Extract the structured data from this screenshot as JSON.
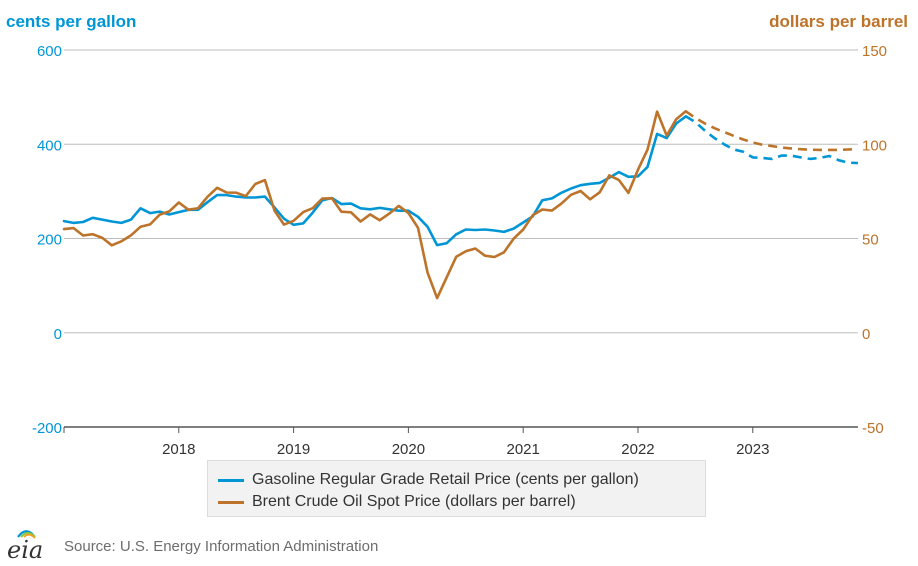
{
  "source_text": "Source: U.S. Energy Information Administration",
  "logo_text": "eia",
  "colors": {
    "gasoline": "#0096d6",
    "brent": "#bd732a",
    "grid": "#bdbdbd"
  },
  "chart_data": {
    "type": "line",
    "left_axis_label": "cents per gallon",
    "right_axis_label": "dollars per barrel",
    "left_ylim": [
      -200,
      600
    ],
    "right_ylim": [
      -50,
      150
    ],
    "left_ticks": [
      "-200",
      "0",
      "200",
      "400",
      "600"
    ],
    "right_ticks": [
      "-50",
      "0",
      "50",
      "100",
      "150"
    ],
    "x_range": [
      "2017-01",
      "2023-12"
    ],
    "x_ticks": [
      "2018",
      "2019",
      "2020",
      "2021",
      "2022",
      "2023"
    ],
    "grid": true,
    "legend_position": "bottom",
    "series": [
      {
        "name": "Gasoline Regular Grade Retail Price (cents per gallon)",
        "axis": "left",
        "color": "#0096d6",
        "historical": [
          [
            "2017-01",
            237
          ],
          [
            "2017-02",
            233
          ],
          [
            "2017-03",
            235
          ],
          [
            "2017-04",
            244
          ],
          [
            "2017-05",
            240
          ],
          [
            "2017-06",
            236
          ],
          [
            "2017-07",
            233
          ],
          [
            "2017-08",
            240
          ],
          [
            "2017-09",
            264
          ],
          [
            "2017-10",
            254
          ],
          [
            "2017-11",
            257
          ],
          [
            "2017-12",
            251
          ],
          [
            "2018-01",
            256
          ],
          [
            "2018-02",
            261
          ],
          [
            "2018-03",
            261
          ],
          [
            "2018-04",
            277
          ],
          [
            "2018-05",
            292
          ],
          [
            "2018-06",
            292
          ],
          [
            "2018-07",
            289
          ],
          [
            "2018-08",
            287
          ],
          [
            "2018-09",
            287
          ],
          [
            "2018-10",
            289
          ],
          [
            "2018-11",
            266
          ],
          [
            "2018-12",
            242
          ],
          [
            "2019-01",
            229
          ],
          [
            "2019-02",
            232
          ],
          [
            "2019-03",
            255
          ],
          [
            "2019-04",
            281
          ],
          [
            "2019-05",
            286
          ],
          [
            "2019-06",
            273
          ],
          [
            "2019-07",
            274
          ],
          [
            "2019-08",
            264
          ],
          [
            "2019-09",
            262
          ],
          [
            "2019-10",
            265
          ],
          [
            "2019-11",
            262
          ],
          [
            "2019-12",
            259
          ],
          [
            "2020-01",
            259
          ],
          [
            "2020-02",
            246
          ],
          [
            "2020-03",
            225
          ],
          [
            "2020-04",
            186
          ],
          [
            "2020-05",
            190
          ],
          [
            "2020-06",
            209
          ],
          [
            "2020-07",
            219
          ],
          [
            "2020-08",
            218
          ],
          [
            "2020-09",
            219
          ],
          [
            "2020-10",
            217
          ],
          [
            "2020-11",
            214
          ],
          [
            "2020-12",
            221
          ],
          [
            "2021-01",
            234
          ],
          [
            "2021-02",
            247
          ],
          [
            "2021-03",
            281
          ],
          [
            "2021-04",
            285
          ],
          [
            "2021-05",
            297
          ],
          [
            "2021-06",
            306
          ],
          [
            "2021-07",
            313
          ],
          [
            "2021-08",
            316
          ],
          [
            "2021-09",
            318
          ],
          [
            "2021-10",
            329
          ],
          [
            "2021-11",
            341
          ],
          [
            "2021-12",
            331
          ],
          [
            "2022-01",
            332
          ],
          [
            "2022-02",
            352
          ],
          [
            "2022-03",
            422
          ],
          [
            "2022-04",
            413
          ],
          [
            "2022-05",
            444
          ],
          [
            "2022-06",
            459
          ]
        ],
        "forecast": [
          [
            "2022-06",
            459
          ],
          [
            "2022-07",
            447
          ],
          [
            "2022-08",
            429
          ],
          [
            "2022-09",
            413
          ],
          [
            "2022-10",
            400
          ],
          [
            "2022-11",
            389
          ],
          [
            "2022-12",
            384
          ],
          [
            "2023-01",
            372
          ],
          [
            "2023-02",
            371
          ],
          [
            "2023-03",
            369
          ],
          [
            "2023-04",
            376
          ],
          [
            "2023-05",
            376
          ],
          [
            "2023-06",
            372
          ],
          [
            "2023-07",
            369
          ],
          [
            "2023-08",
            371
          ],
          [
            "2023-09",
            375
          ],
          [
            "2023-10",
            366
          ],
          [
            "2023-11",
            361
          ],
          [
            "2023-12",
            360
          ]
        ]
      },
      {
        "name": "Brent Crude Oil Spot Price (dollars per barrel)",
        "axis": "right",
        "color": "#bd732a",
        "historical": [
          [
            "2017-01",
            55
          ],
          [
            "2017-02",
            55.5
          ],
          [
            "2017-03",
            51.6
          ],
          [
            "2017-04",
            52.3
          ],
          [
            "2017-05",
            50.3
          ],
          [
            "2017-06",
            46.4
          ],
          [
            "2017-07",
            48.5
          ],
          [
            "2017-08",
            51.7
          ],
          [
            "2017-09",
            56.2
          ],
          [
            "2017-10",
            57.5
          ],
          [
            "2017-11",
            62.7
          ],
          [
            "2017-12",
            64.4
          ],
          [
            "2018-01",
            69.1
          ],
          [
            "2018-02",
            65.3
          ],
          [
            "2018-03",
            66
          ],
          [
            "2018-04",
            72.1
          ],
          [
            "2018-05",
            76.9
          ],
          [
            "2018-06",
            74.4
          ],
          [
            "2018-07",
            74.3
          ],
          [
            "2018-08",
            72.5
          ],
          [
            "2018-09",
            78.9
          ],
          [
            "2018-10",
            81
          ],
          [
            "2018-11",
            64.8
          ],
          [
            "2018-12",
            57.4
          ],
          [
            "2019-01",
            59.4
          ],
          [
            "2019-02",
            64
          ],
          [
            "2019-03",
            66.1
          ],
          [
            "2019-04",
            71.2
          ],
          [
            "2019-05",
            71.3
          ],
          [
            "2019-06",
            64.2
          ],
          [
            "2019-07",
            63.9
          ],
          [
            "2019-08",
            59
          ],
          [
            "2019-09",
            62.8
          ],
          [
            "2019-10",
            59.7
          ],
          [
            "2019-11",
            63.2
          ],
          [
            "2019-12",
            67.3
          ],
          [
            "2020-01",
            63.6
          ],
          [
            "2020-02",
            55.7
          ],
          [
            "2020-03",
            32
          ],
          [
            "2020-04",
            18.4
          ],
          [
            "2020-05",
            29.4
          ],
          [
            "2020-06",
            40.3
          ],
          [
            "2020-07",
            43.2
          ],
          [
            "2020-08",
            44.7
          ],
          [
            "2020-09",
            40.9
          ],
          [
            "2020-10",
            40.2
          ],
          [
            "2020-11",
            42.7
          ],
          [
            "2020-12",
            49.9
          ],
          [
            "2021-01",
            54.8
          ],
          [
            "2021-02",
            62.3
          ],
          [
            "2021-03",
            65.4
          ],
          [
            "2021-04",
            64.8
          ],
          [
            "2021-05",
            68.5
          ],
          [
            "2021-06",
            73.2
          ],
          [
            "2021-07",
            75.2
          ],
          [
            "2021-08",
            70.8
          ],
          [
            "2021-09",
            74.5
          ],
          [
            "2021-10",
            83.5
          ],
          [
            "2021-11",
            81.1
          ],
          [
            "2021-12",
            74.2
          ],
          [
            "2022-01",
            86.5
          ],
          [
            "2022-02",
            97.1
          ],
          [
            "2022-03",
            117.3
          ],
          [
            "2022-04",
            104.6
          ],
          [
            "2022-05",
            113.3
          ],
          [
            "2022-06",
            117.5
          ]
        ],
        "forecast": [
          [
            "2022-06",
            117.5
          ],
          [
            "2022-07",
            114
          ],
          [
            "2022-08",
            111
          ],
          [
            "2022-09",
            108.5
          ],
          [
            "2022-10",
            106.5
          ],
          [
            "2022-11",
            104.5
          ],
          [
            "2022-12",
            102.5
          ],
          [
            "2023-01",
            101
          ],
          [
            "2023-02",
            99.7
          ],
          [
            "2023-03",
            99
          ],
          [
            "2023-04",
            98.3
          ],
          [
            "2023-05",
            97.8
          ],
          [
            "2023-06",
            97.4
          ],
          [
            "2023-07",
            97.1
          ],
          [
            "2023-08",
            97
          ],
          [
            "2023-09",
            97
          ],
          [
            "2023-10",
            97
          ],
          [
            "2023-11",
            97.2
          ],
          [
            "2023-12",
            97.5
          ]
        ]
      }
    ]
  }
}
